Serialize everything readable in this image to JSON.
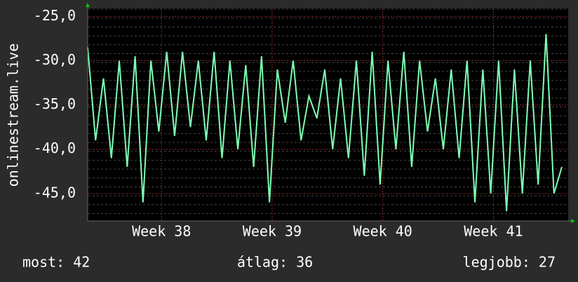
{
  "chart_data": {
    "type": "line",
    "y_label": "onlinestream.live",
    "x": [
      0,
      0.5,
      1,
      1.5,
      2,
      2.5,
      3,
      3.5,
      4,
      4.5,
      5,
      5.5,
      6,
      6.5,
      7,
      7.5,
      8,
      8.5,
      9,
      9.5,
      10,
      10.5,
      11,
      11.5,
      12,
      12.5,
      13,
      13.5,
      14,
      14.5,
      15,
      15.5,
      16,
      16.5,
      17,
      17.5,
      18,
      18.5,
      19,
      19.5,
      20,
      20.5,
      21,
      21.5,
      22,
      22.5,
      23,
      23.5,
      24,
      24.5,
      25,
      25.5,
      26,
      26.5,
      27,
      27.5,
      28,
      28.5,
      29,
      29.5,
      30
    ],
    "series": [
      {
        "name": "onlinestream.live",
        "color": "#7dffb4",
        "values": [
          -28.5,
          -39,
          -32,
          -41,
          -30,
          -42,
          -29.5,
          -46,
          -30,
          -38,
          -29,
          -38.5,
          -29,
          -37.5,
          -30,
          -39,
          -29,
          -41,
          -30,
          -40,
          -30.5,
          -42,
          -29.5,
          -46,
          -31,
          -37,
          -30,
          -39,
          -34,
          -36.5,
          -31,
          -40,
          -32,
          -41,
          -30,
          -43,
          -29,
          -44,
          -30,
          -40,
          -29,
          -42,
          -30,
          -38,
          -32,
          -40,
          -31,
          -41,
          -30,
          -46,
          -31,
          -45,
          -30,
          -47,
          -31,
          -45,
          -30,
          -44,
          -27,
          -45,
          -42
        ]
      }
    ],
    "xlim": [
      0,
      30.4
    ],
    "xticks": [
      {
        "value": 4.67,
        "label": "Week 38"
      },
      {
        "value": 11.67,
        "label": "Week 39"
      },
      {
        "value": 18.67,
        "label": "Week 40"
      },
      {
        "value": 25.67,
        "label": "Week 41"
      }
    ],
    "ylim": [
      -48.1,
      -24.1
    ],
    "yticks": [
      {
        "value": -45,
        "label": "-45,0"
      },
      {
        "value": -40,
        "label": "-40,0"
      },
      {
        "value": -35,
        "label": "-35,0"
      },
      {
        "value": -30,
        "label": "-30,0"
      },
      {
        "value": -25,
        "label": "-25,0"
      }
    ],
    "grid": true,
    "footer": [
      "most: 42",
      "átlag: 36",
      "legjobb: 27"
    ]
  }
}
